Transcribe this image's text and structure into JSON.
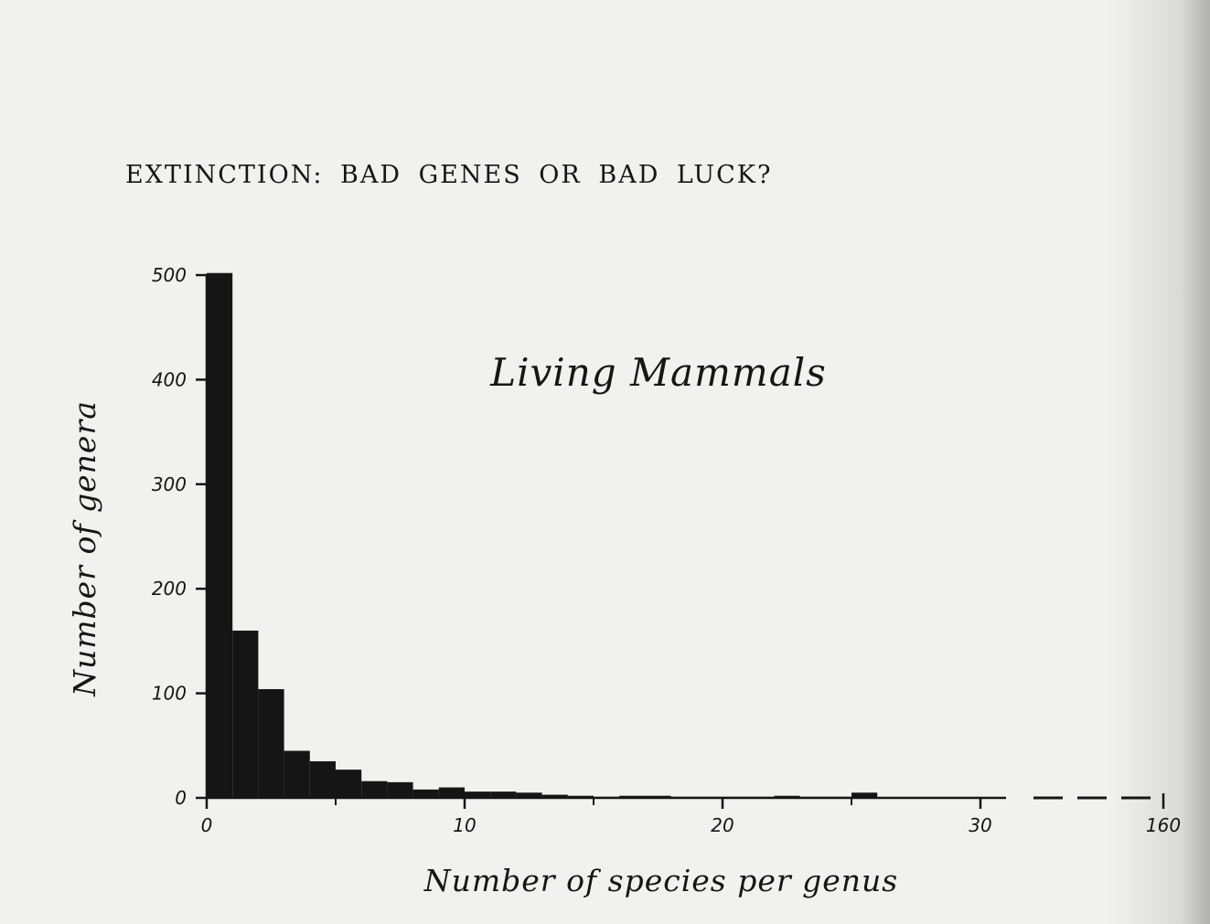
{
  "page": {
    "running_head": "EXTINCTION: BAD GENES OR BAD LUCK?"
  },
  "chart_data": {
    "type": "bar",
    "title": "",
    "annotation": "Living Mammals",
    "xlabel": "Number of species per genus",
    "ylabel": "Number of genera",
    "x_ticks": [
      "0",
      "10",
      "20",
      "30",
      "160"
    ],
    "y_ticks": [
      "0",
      "100",
      "200",
      "300",
      "400",
      "500"
    ],
    "ylim": [
      0,
      500
    ],
    "bin_width": 1,
    "x_start": 0,
    "values": [
      502,
      160,
      104,
      45,
      35,
      27,
      16,
      15,
      8,
      10,
      6,
      6,
      5,
      3,
      2,
      1,
      2,
      2,
      1,
      1,
      1,
      1,
      2,
      1,
      1,
      5,
      0,
      0,
      0,
      0,
      0
    ],
    "axis_break": "between 30 and 160",
    "grid": false,
    "legend": "none",
    "colors": {
      "bars": "#151515",
      "axes": "#161616",
      "paper": "#f1f1ef"
    }
  }
}
